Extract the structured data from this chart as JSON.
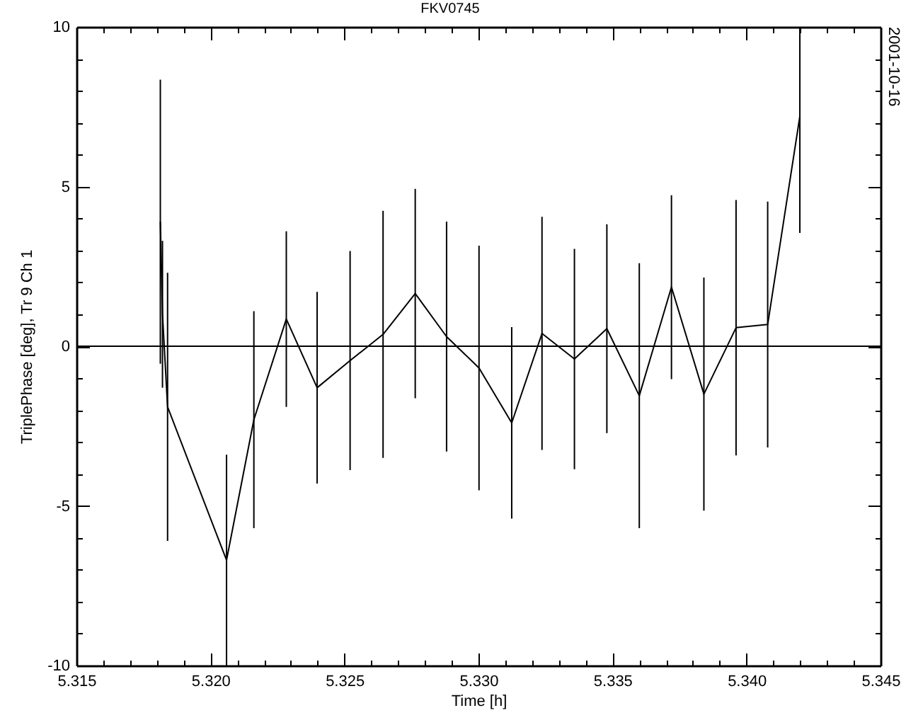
{
  "chart_data": {
    "type": "line",
    "title": "FKV0745",
    "xlabel": "Time [h]",
    "ylabel": "TriplePhase [deg], Tr 9 Ch 1",
    "annotations": [
      "2001-10-16"
    ],
    "color": "#000000",
    "x": [
      5.31813,
      5.31821,
      5.3184,
      5.3206,
      5.32162,
      5.32283,
      5.32398,
      5.32521,
      5.32644,
      5.32764,
      5.32881,
      5.33002,
      5.33124,
      5.33237,
      5.33358,
      5.33479,
      5.336,
      5.3372,
      5.33841,
      5.33961,
      5.34079,
      5.34199
    ],
    "values": [
      3.9,
      1.0,
      -1.9,
      -6.7,
      -2.3,
      0.85,
      -1.3,
      -0.45,
      0.37,
      1.65,
      0.3,
      -0.68,
      -2.4,
      0.4,
      -0.4,
      0.55,
      -1.55,
      1.85,
      -1.5,
      0.58,
      0.68,
      7.2
    ],
    "errors": [
      4.45,
      2.3,
      4.2,
      [
        -10,
        -3.4
      ],
      3.4,
      2.75,
      3.0,
      3.43,
      3.87,
      3.28,
      3.6,
      3.83,
      3.0,
      3.65,
      3.45,
      3.27,
      4.15,
      2.88,
      3.65,
      4.0,
      3.85,
      [
        3.55,
        10
      ]
    ],
    "xlim": [
      5.315,
      5.345
    ],
    "ylim": [
      -10,
      10
    ],
    "xticks": [
      5.315,
      {
        "value": 5.316,
        "label": null
      },
      {
        "value": 5.317,
        "label": null
      },
      {
        "value": 5.318,
        "label": null
      },
      {
        "value": 5.319,
        "label": null
      },
      {
        "value": 5.32,
        "label": "5.320"
      },
      {
        "value": 5.321,
        "label": null
      },
      {
        "value": 5.322,
        "label": null
      },
      {
        "value": 5.323,
        "label": null
      },
      {
        "value": 5.324,
        "label": null
      },
      5.325,
      {
        "value": 5.326,
        "label": null
      },
      {
        "value": 5.327,
        "label": null
      },
      {
        "value": 5.328,
        "label": null
      },
      {
        "value": 5.329,
        "label": null
      },
      {
        "value": 5.33,
        "label": "5.330"
      },
      {
        "value": 5.331,
        "label": null
      },
      {
        "value": 5.332,
        "label": null
      },
      {
        "value": 5.333,
        "label": null
      },
      {
        "value": 5.334,
        "label": null
      },
      5.335,
      {
        "value": 5.336,
        "label": null
      },
      {
        "value": 5.337,
        "label": null
      },
      {
        "value": 5.338,
        "label": null
      },
      {
        "value": 5.339,
        "label": null
      },
      {
        "value": 5.34,
        "label": "5.340"
      },
      {
        "value": 5.341,
        "label": null
      },
      {
        "value": 5.342,
        "label": null
      },
      {
        "value": 5.343,
        "label": null
      },
      {
        "value": 5.344,
        "label": null
      },
      5.345
    ],
    "yticks": [
      -10,
      {
        "value": -9,
        "label": null
      },
      {
        "value": -8,
        "label": null
      },
      {
        "value": -7,
        "label": null
      },
      {
        "value": -6,
        "label": null
      },
      -5,
      {
        "value": -4,
        "label": null
      },
      {
        "value": -3,
        "label": null
      },
      {
        "value": -2,
        "label": null
      },
      {
        "value": -1,
        "label": null
      },
      0,
      {
        "value": 1,
        "label": null
      },
      {
        "value": 2,
        "label": null
      },
      {
        "value": 3,
        "label": null
      },
      {
        "value": 4,
        "label": null
      },
      5,
      {
        "value": 6,
        "label": null
      },
      {
        "value": 7,
        "label": null
      },
      {
        "value": 8,
        "label": null
      },
      {
        "value": 9,
        "label": null
      },
      10
    ],
    "ref_lines": [
      {
        "axis": "y",
        "value": 0
      }
    ]
  }
}
